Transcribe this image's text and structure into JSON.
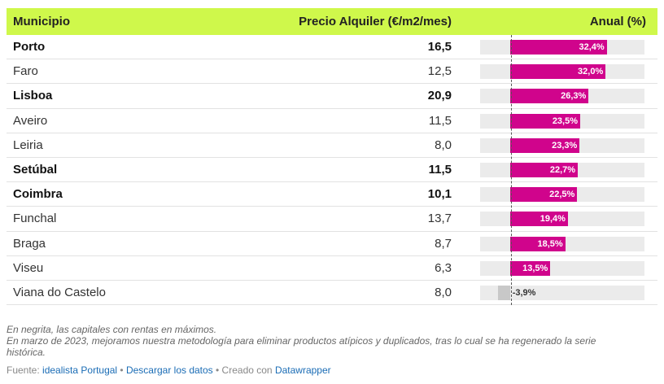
{
  "table": {
    "headers": {
      "municipality": "Municipio",
      "price": "Precio Alquiler (€/m2/mes)",
      "annual": "Anual (%)"
    }
  },
  "chart_data": {
    "type": "table",
    "columns": [
      "Municipio",
      "Precio Alquiler (€/m2/mes)",
      "Anual (%)"
    ],
    "bar_color": "#d0048c",
    "header_color": "#cff84b",
    "bar_range": [
      -10,
      45
    ],
    "rows": [
      {
        "name": "Porto",
        "price": "16,5",
        "annual": 32.4,
        "annual_label": "32,4%",
        "capital": true
      },
      {
        "name": "Faro",
        "price": "12,5",
        "annual": 32.0,
        "annual_label": "32,0%",
        "capital": false
      },
      {
        "name": "Lisboa",
        "price": "20,9",
        "annual": 26.3,
        "annual_label": "26,3%",
        "capital": true
      },
      {
        "name": "Aveiro",
        "price": "11,5",
        "annual": 23.5,
        "annual_label": "23,5%",
        "capital": false
      },
      {
        "name": "Leiria",
        "price": "8,0",
        "annual": 23.3,
        "annual_label": "23,3%",
        "capital": false
      },
      {
        "name": "Setúbal",
        "price": "11,5",
        "annual": 22.7,
        "annual_label": "22,7%",
        "capital": true
      },
      {
        "name": "Coimbra",
        "price": "10,1",
        "annual": 22.5,
        "annual_label": "22,5%",
        "capital": true
      },
      {
        "name": "Funchal",
        "price": "13,7",
        "annual": 19.4,
        "annual_label": "19,4%",
        "capital": false
      },
      {
        "name": "Braga",
        "price": "8,7",
        "annual": 18.5,
        "annual_label": "18,5%",
        "capital": false
      },
      {
        "name": "Viseu",
        "price": "6,3",
        "annual": 13.5,
        "annual_label": "13,5%",
        "capital": false
      },
      {
        "name": "Viana do Castelo",
        "price": "8,0",
        "annual": -3.9,
        "annual_label": "-3,9%",
        "capital": false
      }
    ]
  },
  "notes": {
    "line1": "En negrita, las capitales con rentas en máximos.",
    "line2": "En marzo de 2023, mejoramos nuestra metodología para eliminar productos atípicos y duplicados, tras lo cual se ha regenerado la serie histórica."
  },
  "source": {
    "prefix": "Fuente: ",
    "link1": "idealista Portugal",
    "sep1": " • ",
    "link2": "Descargar los datos",
    "sep2": " • Creado con ",
    "link3": "Datawrapper"
  }
}
